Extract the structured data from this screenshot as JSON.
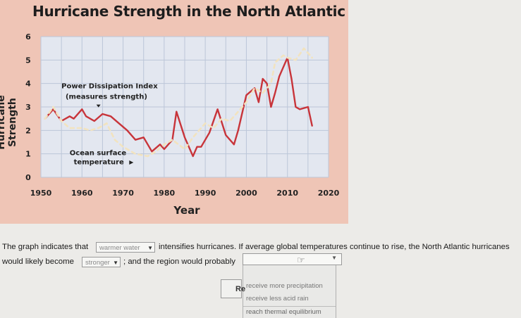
{
  "chart_data": {
    "type": "line",
    "title": "Hurricane Strength in the North Atlantic",
    "xlabel": "Year",
    "ylabel": "Hurricane Strength",
    "xlim": [
      1950,
      2020
    ],
    "ylim": [
      0,
      6
    ],
    "x_ticks": [
      "1950",
      "1960",
      "1970",
      "1980",
      "1990",
      "2000",
      "2010",
      "2020"
    ],
    "y_ticks": [
      "0",
      "1",
      "2",
      "3",
      "4",
      "5",
      "6"
    ],
    "grid": true,
    "series": [
      {
        "name": "Power Dissipation Index (measures strength)",
        "style": "solid",
        "color": "#c8343a",
        "points": [
          [
            1951,
            2.5
          ],
          [
            1953,
            2.9
          ],
          [
            1955,
            2.4
          ],
          [
            1957,
            2.6
          ],
          [
            1958,
            2.5
          ],
          [
            1960,
            2.9
          ],
          [
            1961,
            2.6
          ],
          [
            1963,
            2.4
          ],
          [
            1965,
            2.7
          ],
          [
            1967,
            2.6
          ],
          [
            1969,
            2.3
          ],
          [
            1971,
            2.0
          ],
          [
            1973,
            1.6
          ],
          [
            1975,
            1.7
          ],
          [
            1977,
            1.1
          ],
          [
            1979,
            1.4
          ],
          [
            1980,
            1.2
          ],
          [
            1982,
            1.6
          ],
          [
            1983,
            2.8
          ],
          [
            1985,
            1.7
          ],
          [
            1987,
            0.9
          ],
          [
            1988,
            1.3
          ],
          [
            1989,
            1.3
          ],
          [
            1991,
            1.9
          ],
          [
            1993,
            2.9
          ],
          [
            1995,
            1.8
          ],
          [
            1997,
            1.4
          ],
          [
            1998,
            2.0
          ],
          [
            2000,
            3.5
          ],
          [
            2002,
            3.8
          ],
          [
            2003,
            3.2
          ],
          [
            2004,
            4.2
          ],
          [
            2005,
            4.0
          ],
          [
            2006,
            3.0
          ],
          [
            2007,
            3.6
          ],
          [
            2008,
            4.3
          ],
          [
            2010,
            5.1
          ],
          [
            2011,
            4.2
          ],
          [
            2012,
            3.0
          ],
          [
            2013,
            2.9
          ],
          [
            2015,
            3.0
          ],
          [
            2016,
            2.2
          ]
        ]
      },
      {
        "name": "Ocean surface temperature",
        "style": "dashed",
        "color": "#f2e3bf",
        "points": [
          [
            1951,
            2.5
          ],
          [
            1953,
            3.0
          ],
          [
            1955,
            2.4
          ],
          [
            1957,
            2.1
          ],
          [
            1960,
            2.1
          ],
          [
            1962,
            2.0
          ],
          [
            1964,
            2.1
          ],
          [
            1966,
            2.3
          ],
          [
            1968,
            1.6
          ],
          [
            1970,
            1.3
          ],
          [
            1973,
            1.0
          ],
          [
            1976,
            0.9
          ],
          [
            1978,
            1.1
          ],
          [
            1980,
            1.4
          ],
          [
            1982,
            1.6
          ],
          [
            1985,
            1.2
          ],
          [
            1987,
            1.7
          ],
          [
            1990,
            2.3
          ],
          [
            1992,
            2.1
          ],
          [
            1994,
            2.5
          ],
          [
            1996,
            2.4
          ],
          [
            1998,
            2.8
          ],
          [
            2000,
            3.2
          ],
          [
            2002,
            3.8
          ],
          [
            2004,
            3.6
          ],
          [
            2006,
            4.0
          ],
          [
            2007,
            4.9
          ],
          [
            2009,
            5.2
          ],
          [
            2010,
            5.1
          ],
          [
            2012,
            5.0
          ],
          [
            2014,
            5.5
          ],
          [
            2016,
            5.1
          ]
        ]
      }
    ],
    "annotations": [
      {
        "text": "Power Dissipation Index",
        "x": 1955,
        "y": 3.8
      },
      {
        "text": "(measures strength)",
        "x": 1956,
        "y": 3.35
      },
      {
        "text": "Ocean surface",
        "x": 1957,
        "y": 0.95
      },
      {
        "text": "temperature",
        "x": 1958,
        "y": 0.55
      }
    ]
  },
  "question": {
    "line1_before": "The graph indicates that",
    "line1_after": "intensifies hurricanes. If average global temperatures continue to rise, the North Atlantic hurricanes",
    "line2_before": "would likely become",
    "line2_after": "; and the region would probably"
  },
  "dropdowns": {
    "first_selected": "warmer water",
    "second_selected": "stronger",
    "third_selected": "",
    "third_options": [
      "receive more precipitation",
      "receive less acid rain",
      "reach thermal equilibrium"
    ]
  },
  "partial_label": "Re",
  "colors": {
    "panel_bg": "#efc5b6",
    "page_bg": "#ecebe8",
    "pdi_line": "#c8343a",
    "sst_line": "#f2e3bf"
  }
}
